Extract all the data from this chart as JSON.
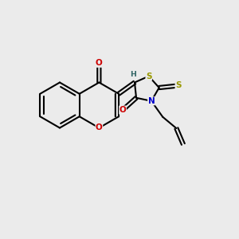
{
  "bg_color": "#ebebeb",
  "bond_color": "#000000",
  "bond_width": 1.5,
  "atom_colors": {
    "O": "#cc0000",
    "S": "#999900",
    "N": "#0000cc",
    "H": "#336666",
    "C": "#000000"
  },
  "font_size": 7.5
}
